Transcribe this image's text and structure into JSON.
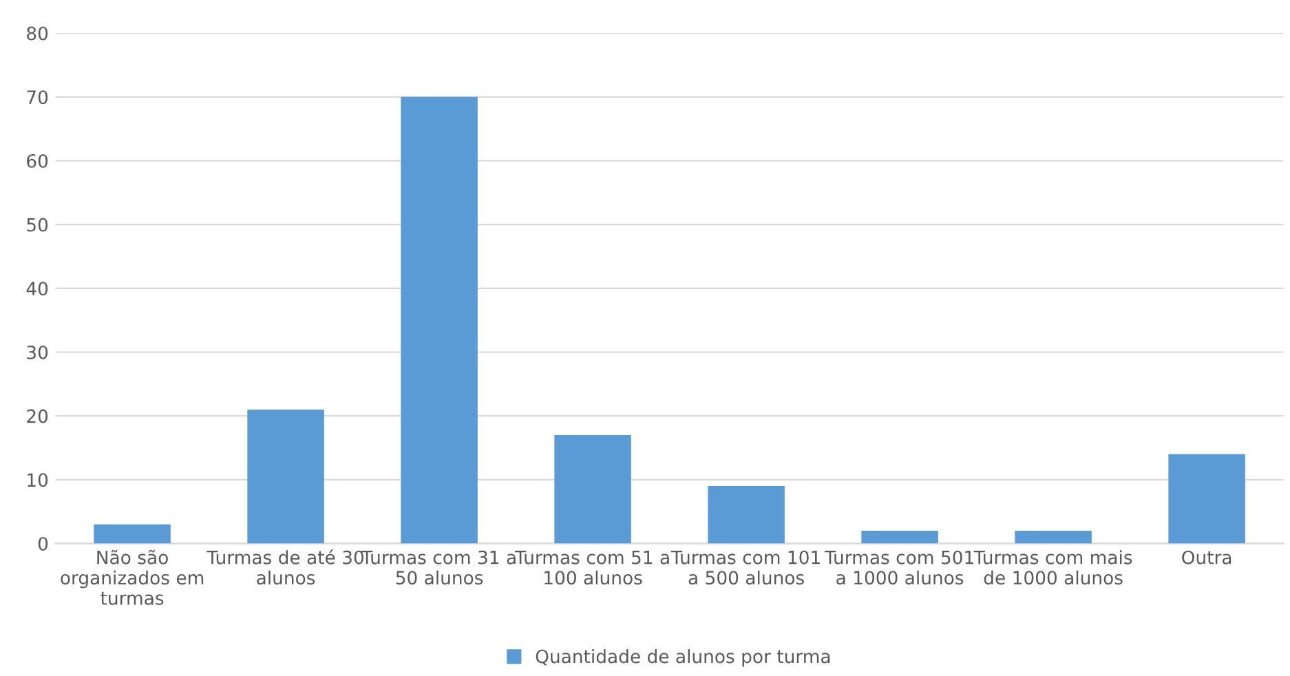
{
  "chart_data": {
    "type": "bar",
    "categories": [
      "Não são\norganizados em\nturmas",
      "Turmas de até 30\nalunos",
      "Turmas com 31 a\n50 alunos",
      "Turmas com 51 a\n100 alunos",
      "Turmas com 101\na 500 alunos",
      "Turmas com 501\na 1000 alunos",
      "Turmas com mais\nde 1000 alunos",
      "Outra"
    ],
    "series": [
      {
        "name": "Quantidade de alunos por turma",
        "color": "#5b9bd5",
        "values": [
          3,
          21,
          70,
          17,
          9,
          2,
          2,
          14
        ]
      }
    ],
    "ylim": [
      0,
      80
    ],
    "yticks": [
      0,
      10,
      20,
      30,
      40,
      50,
      60,
      70,
      80
    ],
    "grid": "y",
    "legend": "bottom"
  }
}
